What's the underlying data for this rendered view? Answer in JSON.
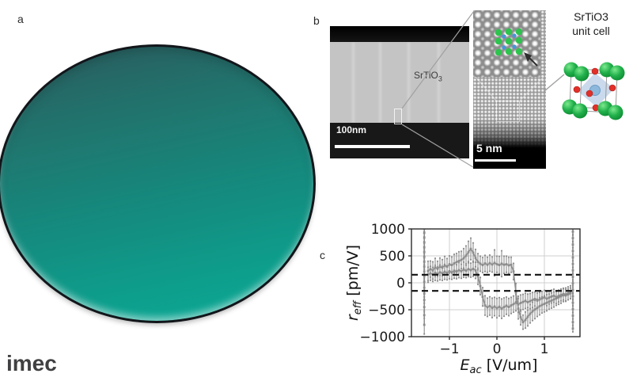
{
  "panel_labels": {
    "a": "a",
    "b": "b",
    "c": "c"
  },
  "logo_text": "imec",
  "wafer": {
    "colors": {
      "top": "#2a5c5e",
      "middle": "#15897d",
      "bottom": "#0aa995",
      "rim": "#12161a"
    }
  },
  "tem": {
    "material": "SrTiO",
    "material_sub": "3",
    "scalebar": "100nm"
  },
  "inset": {
    "scalebar": "5 nm",
    "overlay_colors": {
      "sr": "#2ec34e",
      "ti": "#4596d8",
      "arrow": "#2f2f2f"
    }
  },
  "unit_cell": {
    "title_line1": "SrTiO3",
    "title_line2": "unit cell",
    "colors": {
      "sr": "#21b04b",
      "sr_light": "#7ce98e",
      "sr_dark": "#0e8c33",
      "ti": "#8cb8dc",
      "o": "#e23028",
      "octahedron": "rgba(158,188,221,0.55)",
      "frame": "#9a9a9a"
    }
  },
  "chart_data": {
    "type": "scatter",
    "title": "",
    "xlabel": {
      "main": "E",
      "sub": "ac",
      "rest": " [V/um]"
    },
    "ylabel": {
      "main": "r",
      "sub": "eff",
      "rest": " [pm/V]"
    },
    "xlim": [
      -1.8,
      1.75
    ],
    "ylim": [
      -1000,
      1000
    ],
    "xticks": [
      {
        "v": -1,
        "label": "−1"
      },
      {
        "v": 0,
        "label": "0"
      },
      {
        "v": 1,
        "label": "1"
      }
    ],
    "yticks": [
      {
        "v": 1000,
        "label": "1000"
      },
      {
        "v": 500,
        "label": "500"
      },
      {
        "v": 0,
        "label": "0"
      },
      {
        "v": -500,
        "label": "−500"
      },
      {
        "v": -1000,
        "label": "−1000"
      }
    ],
    "grid": true,
    "grid_color": "#cfcfcf",
    "data_color": "#8c8c8c",
    "spine_color": "#2b2b2b",
    "reference_lines": [
      {
        "y": 150,
        "style": "dashed",
        "color": "#111111"
      },
      {
        "y": -150,
        "style": "dashed",
        "color": "#111111"
      }
    ],
    "series": [
      {
        "name": "forward-sweep",
        "points": [
          [
            -1.45,
            220,
            180
          ],
          [
            -1.4,
            255,
            150
          ],
          [
            -1.35,
            230,
            160
          ],
          [
            -1.3,
            285,
            170
          ],
          [
            -1.25,
            260,
            140
          ],
          [
            -1.2,
            300,
            160
          ],
          [
            -1.15,
            280,
            150
          ],
          [
            -1.1,
            320,
            170
          ],
          [
            -1.05,
            300,
            150
          ],
          [
            -1.0,
            340,
            160
          ],
          [
            -0.95,
            330,
            150
          ],
          [
            -0.9,
            360,
            170
          ],
          [
            -0.85,
            385,
            160
          ],
          [
            -0.8,
            405,
            170
          ],
          [
            -0.75,
            425,
            160
          ],
          [
            -0.7,
            455,
            180
          ],
          [
            -0.65,
            505,
            180
          ],
          [
            -0.6,
            570,
            200
          ],
          [
            -0.55,
            630,
            200
          ],
          [
            -0.5,
            560,
            180
          ],
          [
            -0.45,
            460,
            160
          ],
          [
            -0.4,
            390,
            150
          ],
          [
            -0.35,
            355,
            140
          ],
          [
            -0.3,
            330,
            140
          ],
          [
            -0.25,
            360,
            150
          ],
          [
            -0.2,
            335,
            140
          ],
          [
            -0.15,
            365,
            150
          ],
          [
            -0.1,
            340,
            140
          ],
          [
            -0.05,
            370,
            240
          ],
          [
            0.0,
            345,
            150
          ],
          [
            0.05,
            330,
            160
          ],
          [
            0.1,
            355,
            240
          ],
          [
            0.15,
            335,
            160
          ],
          [
            0.2,
            345,
            150
          ],
          [
            0.25,
            325,
            150
          ],
          [
            0.3,
            335,
            140
          ],
          [
            0.35,
            210,
            150
          ],
          [
            0.4,
            -180,
            170
          ],
          [
            0.45,
            -480,
            190
          ],
          [
            0.5,
            -640,
            140
          ],
          [
            0.55,
            -730,
            130
          ],
          [
            0.6,
            -690,
            150
          ],
          [
            0.65,
            -630,
            170
          ],
          [
            0.7,
            -575,
            170
          ],
          [
            0.75,
            -530,
            170
          ],
          [
            0.8,
            -495,
            170
          ],
          [
            0.85,
            -465,
            160
          ],
          [
            0.9,
            -435,
            160
          ],
          [
            0.95,
            -410,
            150
          ],
          [
            1.0,
            -390,
            150
          ],
          [
            1.05,
            -370,
            150
          ],
          [
            1.1,
            -350,
            140
          ],
          [
            1.15,
            -330,
            140
          ],
          [
            1.2,
            -310,
            140
          ],
          [
            1.25,
            -290,
            130
          ],
          [
            1.3,
            -270,
            130
          ],
          [
            1.35,
            -250,
            130
          ],
          [
            1.4,
            -230,
            120
          ],
          [
            1.45,
            -215,
            120
          ],
          [
            1.5,
            -195,
            120
          ],
          [
            1.55,
            -175,
            120
          ]
        ]
      },
      {
        "name": "reverse-sweep",
        "points": [
          [
            -1.45,
            150,
            140
          ],
          [
            -1.4,
            175,
            130
          ],
          [
            -1.35,
            155,
            130
          ],
          [
            -1.3,
            185,
            140
          ],
          [
            -1.25,
            165,
            130
          ],
          [
            -1.2,
            195,
            140
          ],
          [
            -1.15,
            175,
            130
          ],
          [
            -1.1,
            205,
            140
          ],
          [
            -1.05,
            185,
            130
          ],
          [
            -1.0,
            215,
            140
          ],
          [
            -0.95,
            195,
            130
          ],
          [
            -0.9,
            225,
            140
          ],
          [
            -0.85,
            205,
            130
          ],
          [
            -0.8,
            235,
            140
          ],
          [
            -0.75,
            215,
            130
          ],
          [
            -0.7,
            245,
            140
          ],
          [
            -0.65,
            225,
            130
          ],
          [
            -0.6,
            255,
            140
          ],
          [
            -0.55,
            235,
            130
          ],
          [
            -0.5,
            260,
            140
          ],
          [
            -0.45,
            230,
            150
          ],
          [
            -0.4,
            120,
            150
          ],
          [
            -0.35,
            -60,
            160
          ],
          [
            -0.3,
            -260,
            170
          ],
          [
            -0.25,
            -420,
            180
          ],
          [
            -0.2,
            -455,
            170
          ],
          [
            -0.15,
            -430,
            170
          ],
          [
            -0.1,
            -465,
            180
          ],
          [
            -0.05,
            -440,
            170
          ],
          [
            0.0,
            -470,
            180
          ],
          [
            0.05,
            -445,
            170
          ],
          [
            0.1,
            -480,
            180
          ],
          [
            0.15,
            -450,
            170
          ],
          [
            0.2,
            -425,
            160
          ],
          [
            0.25,
            -450,
            160
          ],
          [
            0.3,
            -420,
            150
          ],
          [
            0.35,
            -395,
            150
          ],
          [
            0.4,
            -370,
            150
          ],
          [
            0.45,
            -400,
            150
          ],
          [
            0.5,
            -375,
            150
          ],
          [
            0.55,
            -355,
            140
          ],
          [
            0.6,
            -335,
            140
          ],
          [
            0.65,
            -360,
            150
          ],
          [
            0.7,
            -340,
            140
          ],
          [
            0.75,
            -320,
            140
          ],
          [
            0.8,
            -300,
            130
          ],
          [
            0.85,
            -330,
            140
          ],
          [
            0.9,
            -310,
            130
          ],
          [
            0.95,
            -290,
            130
          ],
          [
            1.0,
            -270,
            130
          ],
          [
            1.05,
            -295,
            130
          ],
          [
            1.1,
            -275,
            120
          ],
          [
            1.15,
            -255,
            120
          ],
          [
            1.2,
            -240,
            120
          ],
          [
            1.25,
            -265,
            120
          ],
          [
            1.3,
            -245,
            110
          ],
          [
            1.35,
            -225,
            110
          ],
          [
            1.4,
            -210,
            110
          ],
          [
            1.45,
            -235,
            110
          ],
          [
            1.5,
            -215,
            100
          ],
          [
            1.55,
            -195,
            100
          ]
        ]
      },
      {
        "name": "saturation-column-left",
        "points": [
          [
            -1.53,
            -780,
            170
          ],
          [
            -1.53,
            -600,
            60
          ],
          [
            -1.53,
            -450,
            60
          ],
          [
            -1.53,
            -320,
            50
          ],
          [
            -1.53,
            -200,
            50
          ],
          [
            -1.53,
            -90,
            40
          ],
          [
            -1.53,
            20,
            40
          ],
          [
            -1.53,
            120,
            40
          ],
          [
            -1.53,
            210,
            50
          ],
          [
            -1.53,
            300,
            50
          ],
          [
            -1.53,
            390,
            60
          ],
          [
            -1.53,
            480,
            60
          ],
          [
            -1.53,
            570,
            60
          ],
          [
            -1.53,
            660,
            60
          ],
          [
            -1.53,
            750,
            70
          ],
          [
            -1.53,
            840,
            70
          ],
          [
            -1.53,
            930,
            70
          ],
          [
            -1.53,
            1010,
            60
          ]
        ]
      },
      {
        "name": "saturation-column-right",
        "points": [
          [
            1.6,
            -850,
            60
          ],
          [
            1.6,
            -730,
            60
          ],
          [
            1.6,
            -610,
            60
          ],
          [
            1.6,
            -490,
            60
          ],
          [
            1.6,
            -370,
            50
          ],
          [
            1.6,
            -250,
            50
          ],
          [
            1.6,
            -130,
            50
          ],
          [
            1.6,
            -10,
            40
          ],
          [
            1.6,
            110,
            50
          ],
          [
            1.6,
            230,
            50
          ],
          [
            1.6,
            350,
            60
          ],
          [
            1.6,
            470,
            60
          ],
          [
            1.6,
            590,
            60
          ],
          [
            1.6,
            710,
            60
          ],
          [
            1.6,
            830,
            70
          ],
          [
            1.6,
            950,
            70
          ],
          [
            1.6,
            1010,
            50
          ]
        ]
      }
    ]
  }
}
